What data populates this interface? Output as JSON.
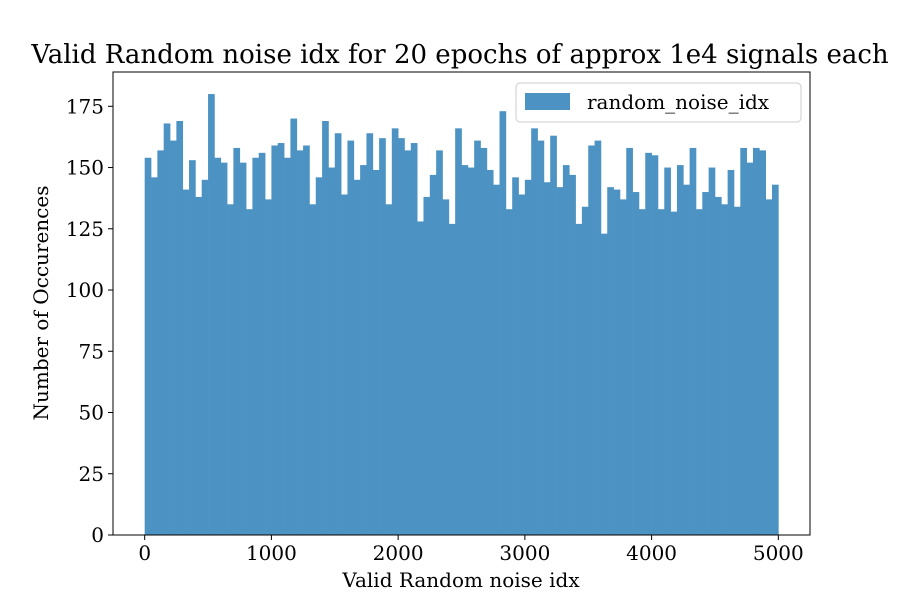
{
  "chart_data": {
    "type": "bar",
    "title": "Valid Random noise idx for 20 epochs of approx 1e4 signals each",
    "xlabel": "Valid Random noise idx",
    "ylabel": "Number of Occurences",
    "xlim": [
      -250,
      5250
    ],
    "ylim": [
      0,
      189
    ],
    "xticks": [
      0,
      1000,
      2000,
      3000,
      4000,
      5000
    ],
    "xtick_labels": [
      "0",
      "1000",
      "2000",
      "3000",
      "4000",
      "5000"
    ],
    "yticks": [
      0,
      25,
      50,
      75,
      100,
      125,
      150,
      175
    ],
    "ytick_labels": [
      "0",
      "25",
      "50",
      "75",
      "100",
      "125",
      "150",
      "175"
    ],
    "grid": false,
    "legend_position": "top-right",
    "color": "#4c93c3",
    "bin_start": 0,
    "bin_width": 50,
    "series": [
      {
        "name": "random_noise_idx",
        "values": [
          154,
          146,
          157,
          168,
          161,
          169,
          141,
          153,
          138,
          145,
          180,
          154,
          152,
          135,
          158,
          152,
          133,
          154,
          156,
          137,
          159,
          160,
          154,
          170,
          157,
          159,
          135,
          146,
          169,
          150,
          164,
          139,
          161,
          145,
          151,
          164,
          149,
          162,
          135,
          166,
          162,
          157,
          160,
          128,
          138,
          147,
          157,
          137,
          127,
          166,
          151,
          150,
          161,
          158,
          149,
          143,
          173,
          133,
          146,
          139,
          145,
          166,
          161,
          144,
          163,
          142,
          151,
          147,
          127,
          134,
          159,
          161,
          123,
          142,
          141,
          137,
          158,
          140,
          133,
          156,
          155,
          133,
          150,
          132,
          151,
          143,
          158,
          133,
          140,
          150,
          138,
          135,
          149,
          134,
          158,
          152,
          158,
          157,
          137,
          143
        ]
      }
    ]
  }
}
